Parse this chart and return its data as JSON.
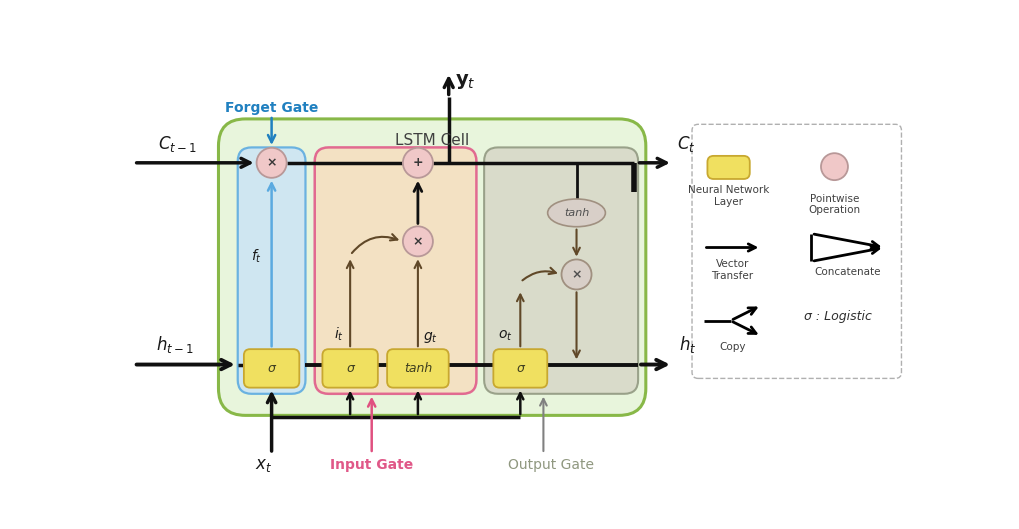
{
  "lstm_cell_label": "LSTM Cell",
  "forget_gate_label": "Forget Gate",
  "input_gate_label": "Input Gate",
  "output_gate_label": "Output Gate",
  "ct_minus1_label": "$C_{t-1}$",
  "ct_label": "$C_t$",
  "ht_minus1_label": "$h_{t-1}$",
  "ht_label": "$h_t$",
  "xt_label": "$x_t$",
  "yt_label": "$\\mathbf{y}_t$",
  "ft_label": "$f_t$",
  "it_label": "$i_t$",
  "gt_label": "$g_t$",
  "ot_label": "$o_t$",
  "sigma_label": "σ",
  "tanh_label": "tanh",
  "legend_nn_label": "Neural Network\nLayer",
  "legend_pw_label": "Pointwise\nOperation",
  "legend_vt_label": "Vector\nTransfer",
  "legend_concat_label": "Concatenate",
  "legend_copy_label": "Copy",
  "legend_logistic_label": "σ : Logistic",
  "bg_color": "#ffffff",
  "lstm_cell_bg": "#e8f5dc",
  "lstm_cell_border": "#88b848",
  "forget_gate_bg": "#cce4f5",
  "forget_gate_border": "#5baae0",
  "input_gate_bg": "#f5dfc0",
  "input_gate_border": "#e05888",
  "output_gate_bg": "#d8d8c8",
  "output_gate_border": "#909880",
  "nn_box_fill": "#f0e060",
  "nn_box_border": "#c8a830",
  "circle_op_fill": "#f0c8c8",
  "circle_op_border": "#b89898",
  "tanh_ellipse_fill": "#d8cfc8",
  "tanh_ellipse_border": "#a09080",
  "arrow_color": "#101010",
  "forget_arrow_color": "#2080c0",
  "input_arrow_color": "#e05080",
  "output_arrow_color": "#808080",
  "internal_arrow_color": "#604828"
}
